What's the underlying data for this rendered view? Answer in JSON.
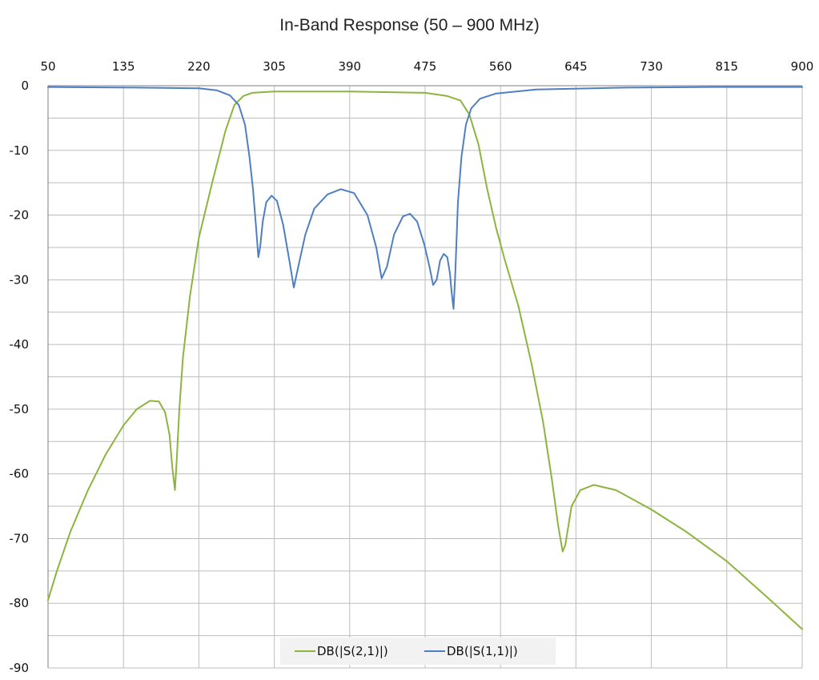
{
  "chart_data": {
    "type": "line",
    "title": "In-Band Response (50 – 900 MHz)",
    "xlabel": "",
    "ylabel": "",
    "xlim": [
      50,
      900
    ],
    "ylim": [
      -90,
      0
    ],
    "x_ticks": [
      "50",
      "135",
      "220",
      "305",
      "390",
      "475",
      "560",
      "645",
      "730",
      "815",
      "900"
    ],
    "y_ticks": [
      "0",
      "-10",
      "-20",
      "-30",
      "-40",
      "-50",
      "-60",
      "-70",
      "-80",
      "-90"
    ],
    "x_axis_position": "top",
    "grid": true,
    "legend": "bottom-center",
    "series": [
      {
        "name": "DB(|S(2,1)|)",
        "color": "#8db43e",
        "points": [
          [
            50,
            -79.5
          ],
          [
            60,
            -75
          ],
          [
            75,
            -69
          ],
          [
            95,
            -62.5
          ],
          [
            115,
            -57
          ],
          [
            135,
            -52.5
          ],
          [
            150,
            -50
          ],
          [
            165,
            -48.7
          ],
          [
            175,
            -48.8
          ],
          [
            182,
            -50.5
          ],
          [
            187,
            -54
          ],
          [
            190,
            -59
          ],
          [
            193,
            -62.5
          ],
          [
            195,
            -58
          ],
          [
            198,
            -50
          ],
          [
            202,
            -42
          ],
          [
            210,
            -32.5
          ],
          [
            220,
            -23.5
          ],
          [
            235,
            -15
          ],
          [
            250,
            -7
          ],
          [
            260,
            -3
          ],
          [
            270,
            -1.6
          ],
          [
            280,
            -1.1
          ],
          [
            305,
            -0.9
          ],
          [
            390,
            -0.9
          ],
          [
            475,
            -1.1
          ],
          [
            500,
            -1.6
          ],
          [
            515,
            -2.3
          ],
          [
            525,
            -4.5
          ],
          [
            535,
            -9
          ],
          [
            545,
            -16
          ],
          [
            555,
            -22
          ],
          [
            565,
            -27
          ],
          [
            580,
            -34
          ],
          [
            595,
            -43
          ],
          [
            608,
            -52
          ],
          [
            618,
            -61
          ],
          [
            625,
            -68
          ],
          [
            630,
            -72
          ],
          [
            633,
            -71
          ],
          [
            640,
            -65
          ],
          [
            650,
            -62.5
          ],
          [
            665,
            -61.7
          ],
          [
            690,
            -62.5
          ],
          [
            730,
            -65.5
          ],
          [
            770,
            -69
          ],
          [
            815,
            -73.5
          ],
          [
            860,
            -79
          ],
          [
            900,
            -84
          ]
        ]
      },
      {
        "name": "DB(|S(1,1)|)",
        "color": "#4f7fc1",
        "points": [
          [
            50,
            -0.2
          ],
          [
            150,
            -0.3
          ],
          [
            220,
            -0.4
          ],
          [
            240,
            -0.7
          ],
          [
            255,
            -1.5
          ],
          [
            265,
            -3
          ],
          [
            272,
            -6
          ],
          [
            277,
            -11
          ],
          [
            281,
            -16
          ],
          [
            284,
            -21
          ],
          [
            287,
            -26.5
          ],
          [
            289,
            -25
          ],
          [
            292,
            -21
          ],
          [
            296,
            -18
          ],
          [
            302,
            -17
          ],
          [
            308,
            -17.8
          ],
          [
            315,
            -21.5
          ],
          [
            322,
            -27
          ],
          [
            327,
            -31.2
          ],
          [
            332,
            -28
          ],
          [
            340,
            -23
          ],
          [
            350,
            -19
          ],
          [
            365,
            -16.8
          ],
          [
            380,
            -16
          ],
          [
            395,
            -16.6
          ],
          [
            410,
            -20
          ],
          [
            420,
            -25
          ],
          [
            426,
            -29.8
          ],
          [
            432,
            -28
          ],
          [
            440,
            -23
          ],
          [
            450,
            -20.2
          ],
          [
            458,
            -19.8
          ],
          [
            466,
            -21
          ],
          [
            474,
            -24.5
          ],
          [
            480,
            -28
          ],
          [
            484,
            -30.8
          ],
          [
            488,
            -30
          ],
          [
            492,
            -27
          ],
          [
            496,
            -26
          ],
          [
            500,
            -26.5
          ],
          [
            503,
            -29
          ],
          [
            505,
            -32
          ],
          [
            507,
            -34.5
          ],
          [
            509,
            -29
          ],
          [
            512,
            -18
          ],
          [
            516,
            -11
          ],
          [
            521,
            -6
          ],
          [
            527,
            -3.5
          ],
          [
            537,
            -2
          ],
          [
            555,
            -1.2
          ],
          [
            600,
            -0.6
          ],
          [
            700,
            -0.3
          ],
          [
            800,
            -0.2
          ],
          [
            900,
            -0.2
          ]
        ]
      }
    ]
  }
}
